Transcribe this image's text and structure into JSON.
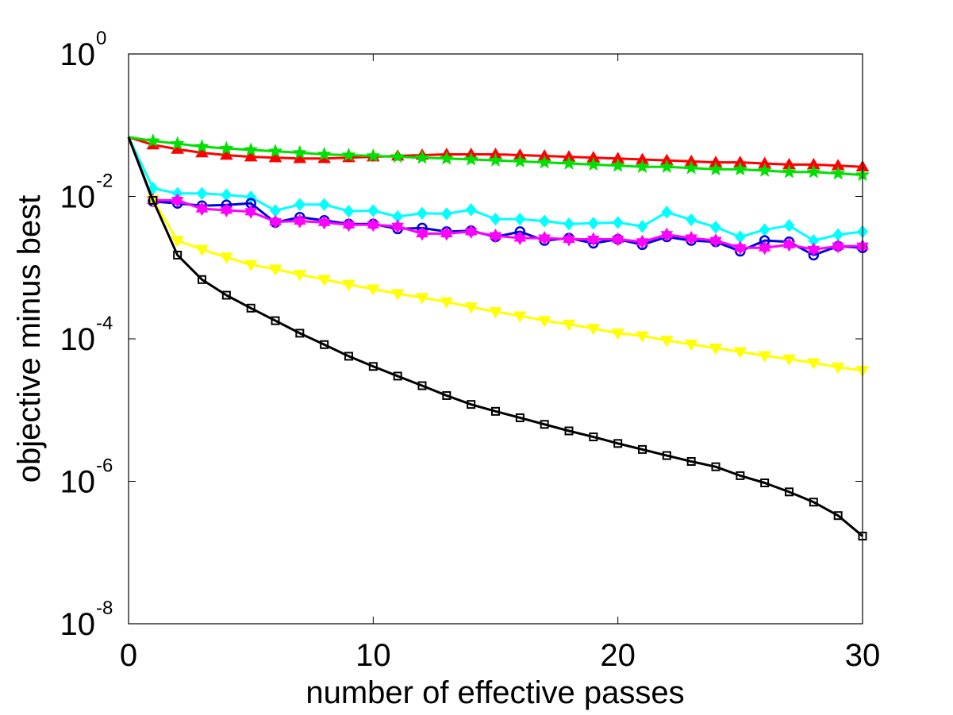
{
  "chart_data": {
    "type": "line",
    "xlabel": "number of effective passes",
    "ylabel": "objective minus best",
    "xlim": [
      0,
      30
    ],
    "ylim": [
      1e-08,
      1
    ],
    "yscale": "log",
    "xticks": [
      0,
      10,
      20,
      30
    ],
    "xtick_labels": [
      "0",
      "10",
      "20",
      "30"
    ],
    "yticks": [
      {
        "base": "10",
        "exp": "0",
        "value": 1
      },
      {
        "base": "10",
        "exp": "-2",
        "value": 0.01
      },
      {
        "base": "10",
        "exp": "-4",
        "value": 0.0001
      },
      {
        "base": "10",
        "exp": "-6",
        "value": 1e-06
      },
      {
        "base": "10",
        "exp": "-8",
        "value": 1e-08
      }
    ],
    "x": [
      0,
      1,
      2,
      3,
      4,
      5,
      6,
      7,
      8,
      9,
      10,
      11,
      12,
      13,
      14,
      15,
      16,
      17,
      18,
      19,
      20,
      21,
      22,
      23,
      24,
      25,
      26,
      27,
      28,
      29,
      30
    ],
    "series": [
      {
        "name": "series-red",
        "color": "#ff0000",
        "marker": "triangle-up",
        "values": [
          0.068,
          0.053,
          0.046,
          0.041,
          0.038,
          0.036,
          0.035,
          0.034,
          0.034,
          0.035,
          0.036,
          0.037,
          0.038,
          0.039,
          0.039,
          0.039,
          0.038,
          0.037,
          0.036,
          0.035,
          0.034,
          0.033,
          0.032,
          0.031,
          0.03,
          0.03,
          0.029,
          0.028,
          0.028,
          0.027,
          0.026
        ]
      },
      {
        "name": "series-green",
        "color": "#00e000",
        "marker": "star",
        "values": [
          0.068,
          0.06,
          0.055,
          0.05,
          0.047,
          0.045,
          0.043,
          0.041,
          0.039,
          0.038,
          0.037,
          0.036,
          0.035,
          0.034,
          0.033,
          0.032,
          0.031,
          0.03,
          0.029,
          0.028,
          0.027,
          0.026,
          0.026,
          0.025,
          0.024,
          0.024,
          0.023,
          0.022,
          0.022,
          0.021,
          0.02
        ]
      },
      {
        "name": "series-cyan",
        "color": "#00ffff",
        "marker": "diamond",
        "values": [
          0.068,
          0.013,
          0.011,
          0.011,
          0.0105,
          0.0098,
          0.0063,
          0.0077,
          0.0077,
          0.0062,
          0.0063,
          0.0052,
          0.0058,
          0.0057,
          0.0065,
          0.0048,
          0.0048,
          0.0045,
          0.0041,
          0.0042,
          0.0043,
          0.0038,
          0.006,
          0.0047,
          0.0037,
          0.0027,
          0.0034,
          0.0039,
          0.0024,
          0.0029,
          0.0032
        ]
      },
      {
        "name": "series-blue",
        "color": "#0000dd",
        "marker": "circle",
        "values": [
          0.068,
          0.0085,
          0.008,
          0.0074,
          0.0076,
          0.008,
          0.0043,
          0.0051,
          0.0046,
          0.0041,
          0.0041,
          0.0035,
          0.0036,
          0.0032,
          0.0033,
          0.0027,
          0.0032,
          0.0024,
          0.0026,
          0.0022,
          0.0025,
          0.0021,
          0.0027,
          0.0024,
          0.0023,
          0.0017,
          0.0024,
          0.0023,
          0.0015,
          0.002,
          0.0019
        ]
      },
      {
        "name": "series-magenta",
        "color": "#ff00ff",
        "marker": "hexagram",
        "values": [
          0.068,
          0.0088,
          0.0088,
          0.0067,
          0.0064,
          0.0061,
          0.0044,
          0.0045,
          0.0043,
          0.004,
          0.004,
          0.0038,
          0.003,
          0.003,
          0.0032,
          0.0028,
          0.0026,
          0.0026,
          0.0025,
          0.0025,
          0.0025,
          0.0023,
          0.0029,
          0.0026,
          0.0024,
          0.0019,
          0.0019,
          0.0021,
          0.0018,
          0.002,
          0.002
        ]
      },
      {
        "name": "series-yellow",
        "color": "#ffff00",
        "marker": "triangle-down",
        "values": [
          0.068,
          0.009,
          0.0024,
          0.0018,
          0.0014,
          0.0011,
          0.00095,
          0.0008,
          0.00068,
          0.00058,
          0.0005,
          0.00043,
          0.00038,
          0.00033,
          0.00028,
          0.00024,
          0.00021,
          0.00018,
          0.00016,
          0.00014,
          0.00012,
          0.00011,
          9.5e-05,
          8.4e-05,
          7.4e-05,
          6.6e-05,
          5.8e-05,
          5.2e-05,
          4.6e-05,
          4e-05,
          3.6e-05
        ]
      },
      {
        "name": "series-black",
        "color": "#000000",
        "marker": "square",
        "values": [
          0.068,
          0.0088,
          0.0015,
          0.00068,
          0.00041,
          0.00027,
          0.00018,
          0.00012,
          8.3e-05,
          5.7e-05,
          4.1e-05,
          3e-05,
          2.2e-05,
          1.6e-05,
          1.2e-05,
          9.6e-06,
          7.8e-06,
          6.3e-06,
          5.1e-06,
          4.2e-06,
          3.4e-06,
          2.8e-06,
          2.3e-06,
          1.9e-06,
          1.6e-06,
          1.2e-06,
          9.5e-07,
          7.1e-07,
          5.1e-07,
          3.3e-07,
          1.7e-07
        ]
      }
    ]
  }
}
